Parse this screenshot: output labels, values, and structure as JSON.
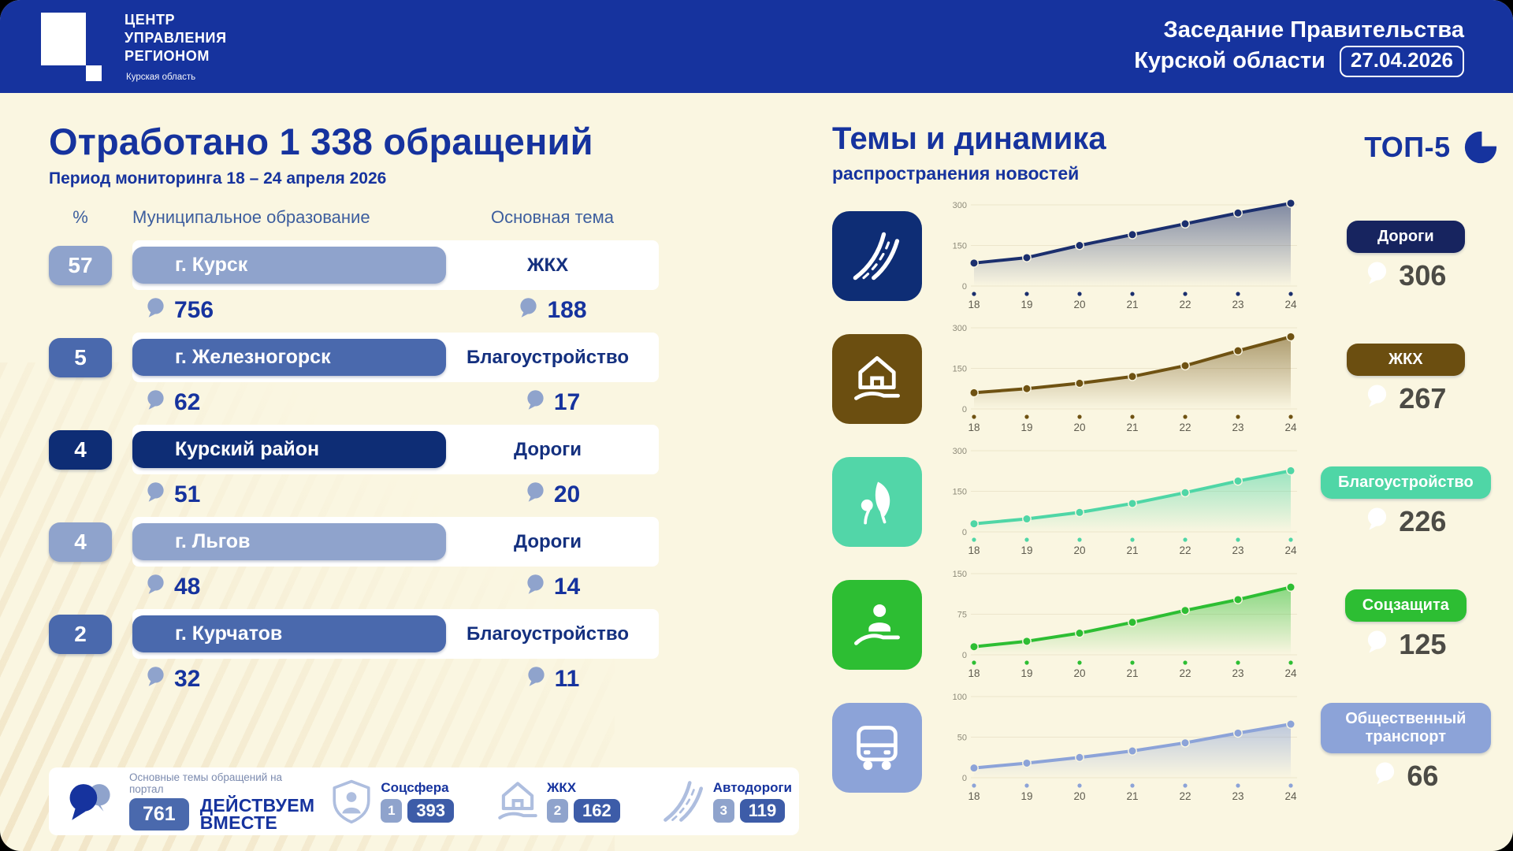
{
  "header": {
    "logo": {
      "title": "ЦЕНТР\nУПРАВЛЕНИЯ\nРЕГИОНОМ",
      "subtitle": "Курская область"
    },
    "meeting_line1": "Заседание Правительства",
    "meeting_line2": "Курской области",
    "date_badge": "27.04.2026"
  },
  "left": {
    "title": "Отработано 1 338 обращений",
    "subtitle": "Период мониторинга 18 – 24 апреля 2026",
    "columns": {
      "percent": "%",
      "municipality": "Муниципальное образование",
      "theme": "Основная тема"
    },
    "rows": [
      {
        "percent": "57",
        "municipality": "г. Курск",
        "count": "756",
        "theme": "ЖКХ",
        "theme_count": "188",
        "tone": "light"
      },
      {
        "percent": "5",
        "municipality": "г. Железногорск",
        "count": "62",
        "theme": "Благоустройство",
        "theme_count": "17",
        "tone": "medium"
      },
      {
        "percent": "4",
        "municipality": "Курский район",
        "count": "51",
        "theme": "Дороги",
        "theme_count": "20",
        "tone": "dark"
      },
      {
        "percent": "4",
        "municipality": "г. Льгов",
        "count": "48",
        "theme": "Дороги",
        "theme_count": "14",
        "tone": "light"
      },
      {
        "percent": "2",
        "municipality": "г. Курчатов",
        "count": "32",
        "theme": "Благоустройство",
        "theme_count": "11",
        "tone": "medium"
      }
    ],
    "footer": {
      "portal_label": "Основные темы обращений на портал",
      "portal_total": "761",
      "portal_name_line1": "ДЕЙСТВУЕМ",
      "portal_name_line2": "ВМЕСТЕ",
      "topics": [
        {
          "label": "Соцсфера",
          "rank": "1",
          "count": "393",
          "icon": "shield-person"
        },
        {
          "label": "ЖКХ",
          "rank": "2",
          "count": "162",
          "icon": "house-hand"
        },
        {
          "label": "Автодороги",
          "rank": "3",
          "count": "119",
          "icon": "road"
        }
      ]
    }
  },
  "right": {
    "title": "Темы и динамика",
    "subtitle": "распространения новостей",
    "top5_label": "ТОП-5"
  },
  "chart_data": [
    {
      "type": "area",
      "key": "roads",
      "name": "Дороги",
      "icon": "road",
      "value": "306",
      "color": "#1B2F6E",
      "icon_bg": "#0E2D75",
      "badge_bg": "#17245F",
      "x": [
        18,
        19,
        20,
        21,
        22,
        23,
        24
      ],
      "values": [
        85,
        105,
        150,
        190,
        230,
        270,
        306
      ],
      "ylim": [
        0,
        300
      ],
      "yticks": [
        0,
        150,
        300
      ],
      "xlabel": "",
      "ylabel": ""
    },
    {
      "type": "area",
      "key": "housing",
      "name": "ЖКХ",
      "icon": "house-hand",
      "value": "267",
      "color": "#6F5212",
      "icon_bg": "#6B4E10",
      "badge_bg": "#6B4E10",
      "x": [
        18,
        19,
        20,
        21,
        22,
        23,
        24
      ],
      "values": [
        60,
        75,
        95,
        120,
        160,
        215,
        267
      ],
      "ylim": [
        0,
        300
      ],
      "yticks": [
        0,
        150,
        300
      ],
      "xlabel": "",
      "ylabel": ""
    },
    {
      "type": "area",
      "key": "landscaping",
      "name": "Благоустройство",
      "icon": "leaf",
      "value": "226",
      "color": "#4FD6A6",
      "icon_bg": "#52D6A8",
      "badge_bg": "#4FD6A6",
      "x": [
        18,
        19,
        20,
        21,
        22,
        23,
        24
      ],
      "values": [
        30,
        48,
        72,
        105,
        145,
        188,
        226
      ],
      "ylim": [
        0,
        300
      ],
      "yticks": [
        0,
        150,
        300
      ],
      "xlabel": "",
      "ylabel": ""
    },
    {
      "type": "area",
      "key": "social",
      "name": "Соцзащита",
      "icon": "person-hand",
      "value": "125",
      "color": "#2DBE33",
      "icon_bg": "#2DBE33",
      "badge_bg": "#2DBE33",
      "x": [
        18,
        19,
        20,
        21,
        22,
        23,
        24
      ],
      "values": [
        15,
        25,
        40,
        60,
        82,
        102,
        125
      ],
      "ylim": [
        0,
        150
      ],
      "yticks": [
        0,
        75,
        150
      ],
      "xlabel": "",
      "ylabel": ""
    },
    {
      "type": "area",
      "key": "transport",
      "name": "Общественный транспорт",
      "icon": "bus",
      "value": "66",
      "color": "#8CA3D8",
      "icon_bg": "#8CA3D8",
      "badge_bg": "#8CA3D8",
      "x": [
        18,
        19,
        20,
        21,
        22,
        23,
        24
      ],
      "values": [
        12,
        18,
        25,
        33,
        43,
        55,
        66
      ],
      "ylim": [
        0,
        100
      ],
      "yticks": [
        0,
        50,
        100
      ],
      "xlabel": "",
      "ylabel": ""
    }
  ],
  "colors": {
    "header_blue": "#16339E",
    "cream": "#FAF6E1",
    "navy_text": "#16339E",
    "bubble": "#8FA3CC",
    "white": "#FFFFFF",
    "value_gray": "#4C4B45",
    "tones": {
      "light": "#8FA3CC",
      "medium": "#4A69AD",
      "dark": "#0E2D75"
    }
  }
}
